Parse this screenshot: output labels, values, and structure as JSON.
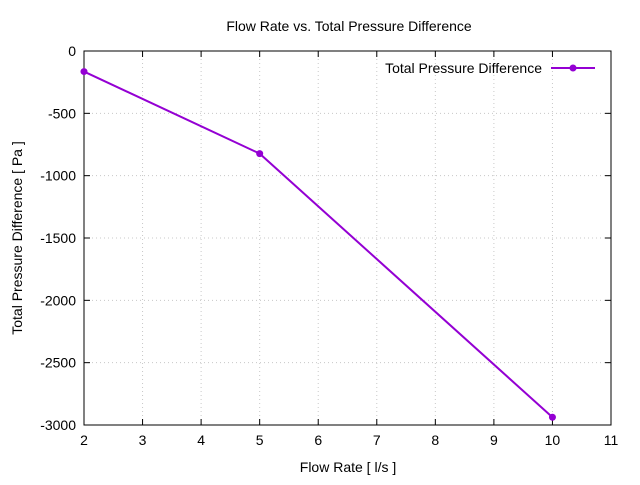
{
  "chart_data": {
    "type": "line",
    "title": "Flow Rate vs. Total Pressure Difference",
    "xlabel": "Flow Rate [ l/s ]",
    "ylabel": "Total Pressure Difference [ Pa ]",
    "xlim": [
      2,
      11
    ],
    "ylim": [
      -3000,
      0
    ],
    "xticks": [
      2,
      3,
      4,
      5,
      6,
      7,
      8,
      9,
      10,
      11
    ],
    "yticks": [
      0,
      -500,
      -1000,
      -1500,
      -2000,
      -2500,
      -3000
    ],
    "grid": true,
    "legend_position": "top-right",
    "series": [
      {
        "name": "Total Pressure Difference",
        "color": "#9400d3",
        "x": [
          2,
          5,
          10
        ],
        "y": [
          -165,
          -823,
          -2938
        ]
      }
    ]
  }
}
